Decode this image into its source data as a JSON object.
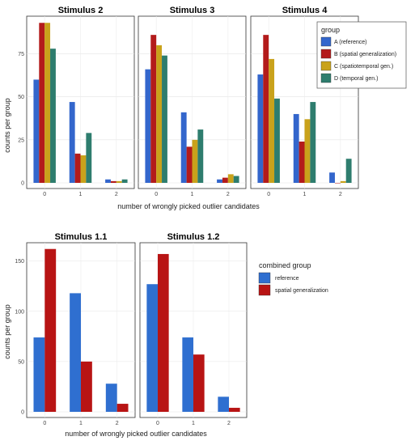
{
  "chart_data": [
    {
      "type": "bar",
      "title": "Stimulus 2",
      "categories": [
        "0",
        "1",
        "2"
      ],
      "ylim": [
        0,
        95
      ],
      "yticks": [
        0,
        25,
        50,
        75
      ],
      "series": [
        {
          "name": "A (reference)",
          "values": [
            60,
            47,
            2
          ]
        },
        {
          "name": "B (spatial generalization)",
          "values": [
            93,
            17,
            1
          ]
        },
        {
          "name": "C (spatiotemporal gen.)",
          "values": [
            93,
            16,
            1
          ]
        },
        {
          "name": "D (temporal gen.)",
          "values": [
            78,
            29,
            2
          ]
        }
      ]
    },
    {
      "type": "bar",
      "title": "Stimulus 3",
      "categories": [
        "0",
        "1",
        "2"
      ],
      "ylim": [
        0,
        95
      ],
      "series": [
        {
          "name": "A (reference)",
          "values": [
            66,
            41,
            2
          ]
        },
        {
          "name": "B (spatial generalization)",
          "values": [
            86,
            21,
            3
          ]
        },
        {
          "name": "C (spatiotemporal gen.)",
          "values": [
            80,
            25,
            5
          ]
        },
        {
          "name": "D (temporal gen.)",
          "values": [
            74,
            31,
            4
          ]
        }
      ]
    },
    {
      "type": "bar",
      "title": "Stimulus 4",
      "categories": [
        "0",
        "1",
        "2"
      ],
      "ylim": [
        0,
        95
      ],
      "series": [
        {
          "name": "A (reference)",
          "values": [
            63,
            40,
            6
          ]
        },
        {
          "name": "B (spatial generalization)",
          "values": [
            86,
            24,
            0
          ]
        },
        {
          "name": "C (spatiotemporal gen.)",
          "values": [
            72,
            37,
            1
          ]
        },
        {
          "name": "D (temporal gen.)",
          "values": [
            49,
            47,
            14
          ]
        }
      ]
    },
    {
      "type": "bar",
      "title": "Stimulus 1.1",
      "categories": [
        "0",
        "1",
        "2"
      ],
      "ylim": [
        0,
        165
      ],
      "yticks": [
        0,
        50,
        100,
        150
      ],
      "series": [
        {
          "name": "reference",
          "values": [
            74,
            118,
            28
          ]
        },
        {
          "name": "spatial generalization",
          "values": [
            162,
            50,
            8
          ]
        }
      ]
    },
    {
      "type": "bar",
      "title": "Stimulus 1.2",
      "categories": [
        "0",
        "1",
        "2"
      ],
      "ylim": [
        0,
        165
      ],
      "series": [
        {
          "name": "reference",
          "values": [
            127,
            74,
            15
          ]
        },
        {
          "name": "spatial generalization",
          "values": [
            157,
            57,
            4
          ]
        }
      ]
    }
  ],
  "top": {
    "ylabel": "counts per group",
    "xlabel": "number of wrongly picked outlier candidates",
    "legend_title": "group",
    "legend": [
      {
        "label": "A (reference)",
        "color": "#3366cc"
      },
      {
        "label": "B (spatial generalization)",
        "color": "#b31b1b"
      },
      {
        "label": "C (spatiotemporal gen.)",
        "color": "#c9a21b"
      },
      {
        "label": "D (temporal gen.)",
        "color": "#2e7d6e"
      }
    ]
  },
  "bottom": {
    "ylabel": "counts per group",
    "xlabel": "number of wrongly picked outlier candidates",
    "legend_title": "combined group",
    "legend": [
      {
        "label": "reference",
        "color": "#2f6fd0"
      },
      {
        "label": "spatial generalization",
        "color": "#b81414"
      }
    ]
  }
}
